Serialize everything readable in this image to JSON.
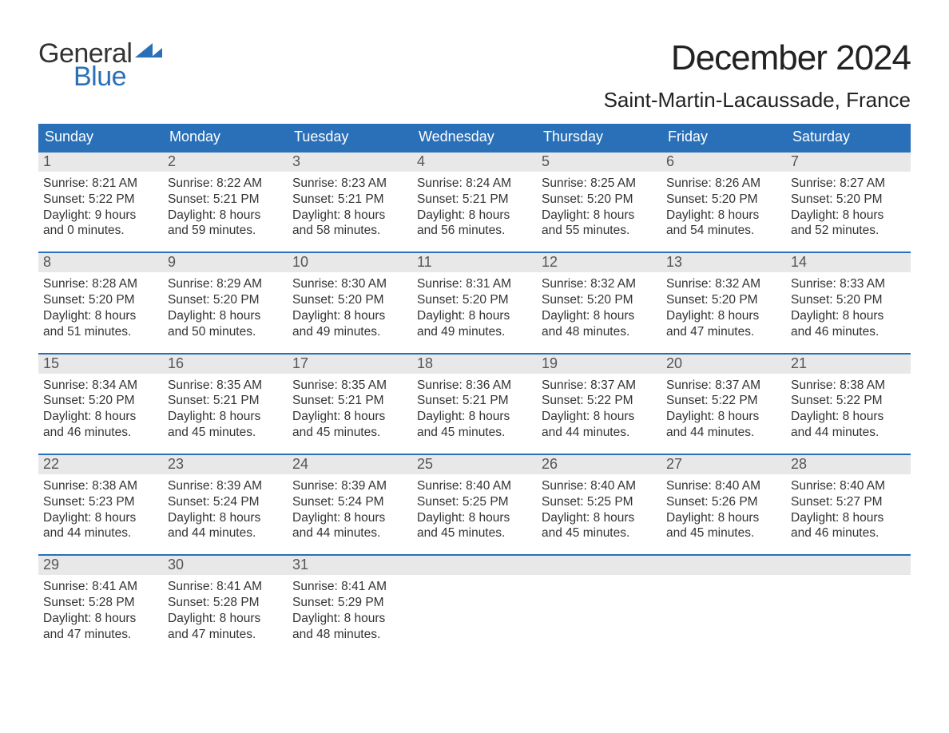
{
  "logo": {
    "word1": "General",
    "word2": "Blue"
  },
  "title": "December 2024",
  "location": "Saint-Martin-Lacaussade, France",
  "colors": {
    "header_bg": "#2a70b8",
    "header_text": "#ffffff",
    "daynum_bg": "#e8e8e8",
    "daynum_text": "#555555",
    "body_text": "#333333",
    "rule": "#2a70b8",
    "page_bg": "#ffffff"
  },
  "typography": {
    "title_fontsize": 44,
    "location_fontsize": 26,
    "weekday_fontsize": 18,
    "daynum_fontsize": 18,
    "body_fontsize": 15.5
  },
  "weekdays": [
    "Sunday",
    "Monday",
    "Tuesday",
    "Wednesday",
    "Thursday",
    "Friday",
    "Saturday"
  ],
  "weeks": [
    [
      {
        "n": "1",
        "sr": "8:21 AM",
        "ss": "5:22 PM",
        "d1": "9 hours",
        "d2": "and 0 minutes."
      },
      {
        "n": "2",
        "sr": "8:22 AM",
        "ss": "5:21 PM",
        "d1": "8 hours",
        "d2": "and 59 minutes."
      },
      {
        "n": "3",
        "sr": "8:23 AM",
        "ss": "5:21 PM",
        "d1": "8 hours",
        "d2": "and 58 minutes."
      },
      {
        "n": "4",
        "sr": "8:24 AM",
        "ss": "5:21 PM",
        "d1": "8 hours",
        "d2": "and 56 minutes."
      },
      {
        "n": "5",
        "sr": "8:25 AM",
        "ss": "5:20 PM",
        "d1": "8 hours",
        "d2": "and 55 minutes."
      },
      {
        "n": "6",
        "sr": "8:26 AM",
        "ss": "5:20 PM",
        "d1": "8 hours",
        "d2": "and 54 minutes."
      },
      {
        "n": "7",
        "sr": "8:27 AM",
        "ss": "5:20 PM",
        "d1": "8 hours",
        "d2": "and 52 minutes."
      }
    ],
    [
      {
        "n": "8",
        "sr": "8:28 AM",
        "ss": "5:20 PM",
        "d1": "8 hours",
        "d2": "and 51 minutes."
      },
      {
        "n": "9",
        "sr": "8:29 AM",
        "ss": "5:20 PM",
        "d1": "8 hours",
        "d2": "and 50 minutes."
      },
      {
        "n": "10",
        "sr": "8:30 AM",
        "ss": "5:20 PM",
        "d1": "8 hours",
        "d2": "and 49 minutes."
      },
      {
        "n": "11",
        "sr": "8:31 AM",
        "ss": "5:20 PM",
        "d1": "8 hours",
        "d2": "and 49 minutes."
      },
      {
        "n": "12",
        "sr": "8:32 AM",
        "ss": "5:20 PM",
        "d1": "8 hours",
        "d2": "and 48 minutes."
      },
      {
        "n": "13",
        "sr": "8:32 AM",
        "ss": "5:20 PM",
        "d1": "8 hours",
        "d2": "and 47 minutes."
      },
      {
        "n": "14",
        "sr": "8:33 AM",
        "ss": "5:20 PM",
        "d1": "8 hours",
        "d2": "and 46 minutes."
      }
    ],
    [
      {
        "n": "15",
        "sr": "8:34 AM",
        "ss": "5:20 PM",
        "d1": "8 hours",
        "d2": "and 46 minutes."
      },
      {
        "n": "16",
        "sr": "8:35 AM",
        "ss": "5:21 PM",
        "d1": "8 hours",
        "d2": "and 45 minutes."
      },
      {
        "n": "17",
        "sr": "8:35 AM",
        "ss": "5:21 PM",
        "d1": "8 hours",
        "d2": "and 45 minutes."
      },
      {
        "n": "18",
        "sr": "8:36 AM",
        "ss": "5:21 PM",
        "d1": "8 hours",
        "d2": "and 45 minutes."
      },
      {
        "n": "19",
        "sr": "8:37 AM",
        "ss": "5:22 PM",
        "d1": "8 hours",
        "d2": "and 44 minutes."
      },
      {
        "n": "20",
        "sr": "8:37 AM",
        "ss": "5:22 PM",
        "d1": "8 hours",
        "d2": "and 44 minutes."
      },
      {
        "n": "21",
        "sr": "8:38 AM",
        "ss": "5:22 PM",
        "d1": "8 hours",
        "d2": "and 44 minutes."
      }
    ],
    [
      {
        "n": "22",
        "sr": "8:38 AM",
        "ss": "5:23 PM",
        "d1": "8 hours",
        "d2": "and 44 minutes."
      },
      {
        "n": "23",
        "sr": "8:39 AM",
        "ss": "5:24 PM",
        "d1": "8 hours",
        "d2": "and 44 minutes."
      },
      {
        "n": "24",
        "sr": "8:39 AM",
        "ss": "5:24 PM",
        "d1": "8 hours",
        "d2": "and 44 minutes."
      },
      {
        "n": "25",
        "sr": "8:40 AM",
        "ss": "5:25 PM",
        "d1": "8 hours",
        "d2": "and 45 minutes."
      },
      {
        "n": "26",
        "sr": "8:40 AM",
        "ss": "5:25 PM",
        "d1": "8 hours",
        "d2": "and 45 minutes."
      },
      {
        "n": "27",
        "sr": "8:40 AM",
        "ss": "5:26 PM",
        "d1": "8 hours",
        "d2": "and 45 minutes."
      },
      {
        "n": "28",
        "sr": "8:40 AM",
        "ss": "5:27 PM",
        "d1": "8 hours",
        "d2": "and 46 minutes."
      }
    ],
    [
      {
        "n": "29",
        "sr": "8:41 AM",
        "ss": "5:28 PM",
        "d1": "8 hours",
        "d2": "and 47 minutes."
      },
      {
        "n": "30",
        "sr": "8:41 AM",
        "ss": "5:28 PM",
        "d1": "8 hours",
        "d2": "and 47 minutes."
      },
      {
        "n": "31",
        "sr": "8:41 AM",
        "ss": "5:29 PM",
        "d1": "8 hours",
        "d2": "and 48 minutes."
      },
      null,
      null,
      null,
      null
    ]
  ],
  "labels": {
    "sunrise_prefix": "Sunrise: ",
    "sunset_prefix": "Sunset: ",
    "daylight_prefix": "Daylight: "
  }
}
